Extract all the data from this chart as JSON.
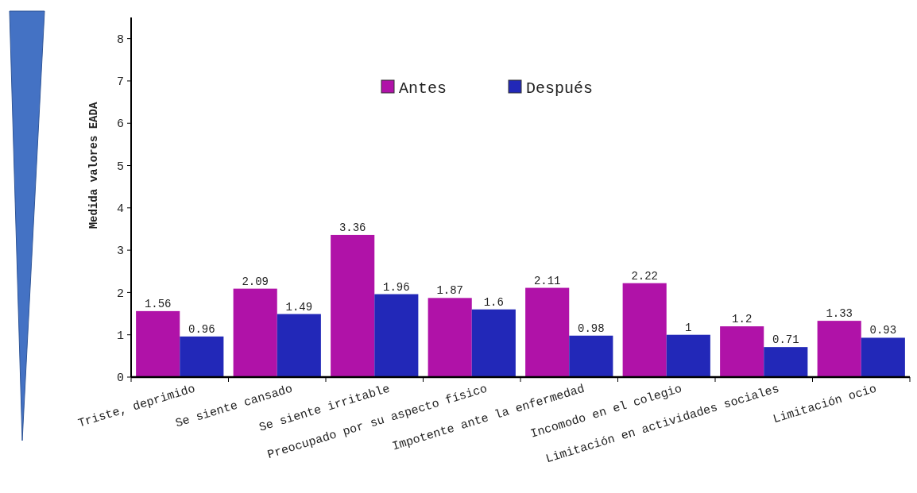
{
  "chart_data": {
    "type": "bar",
    "ylabel": "Medida valores EADA",
    "categories": [
      "Triste, deprimido",
      "Se siente cansado",
      "Se siente irritable",
      "Preocupado por su aspecto físico",
      "Impotente ante la enfermedad",
      "Incomodo en el colegio",
      "Limitación en actividades sociales",
      "Limitación ocio"
    ],
    "series": [
      {
        "name": "Antes",
        "color": "#b012a8",
        "values": [
          1.56,
          2.09,
          3.36,
          1.87,
          2.11,
          2.22,
          1.2,
          1.33
        ]
      },
      {
        "name": "Después",
        "color": "#2228b8",
        "values": [
          0.96,
          1.49,
          1.96,
          1.6,
          0.98,
          1,
          0.71,
          0.93
        ]
      }
    ],
    "ylim": [
      0,
      8.5
    ],
    "yticks": [
      0,
      1,
      2,
      3,
      4,
      5,
      6,
      7,
      8
    ],
    "data_labels": true,
    "legend": "top",
    "grid": false
  }
}
